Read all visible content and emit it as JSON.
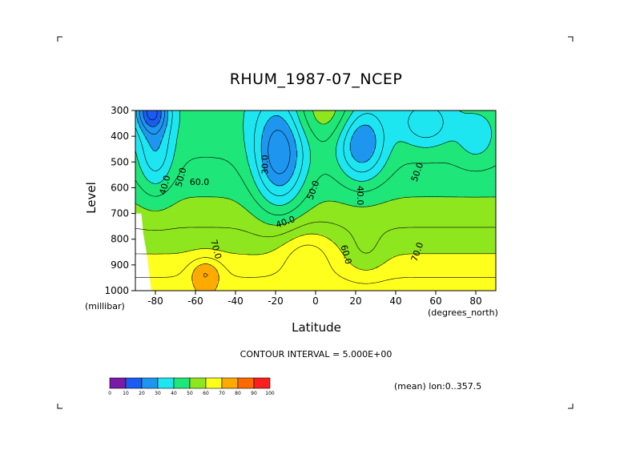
{
  "chart_data": {
    "type": "heatmap",
    "subtype": "filled-contour",
    "title": "RHUM_1987-07_NCEP",
    "xlabel": "Latitude",
    "ylabel": "Level",
    "x_units": "(degrees_north)",
    "y_units": "(millibar)",
    "xlim": [
      -90,
      90
    ],
    "ylim": [
      1000,
      300
    ],
    "x_ticks": [
      -80,
      -60,
      -40,
      -20,
      0,
      20,
      40,
      60,
      80
    ],
    "y_ticks": [
      300,
      400,
      500,
      600,
      700,
      800,
      900,
      1000
    ],
    "contour_interval_text": "CONTOUR INTERVAL = 5.000E+00",
    "footnote": "(mean) lon:0..357.5",
    "contour_labels": [
      {
        "text": "40.0",
        "x": -75,
        "y": 590,
        "rotate": -75
      },
      {
        "text": "50.0",
        "x": -67,
        "y": 560,
        "rotate": -75
      },
      {
        "text": "60.0",
        "x": -58,
        "y": 580,
        "rotate": 0
      },
      {
        "text": "70.0",
        "x": -50,
        "y": 840,
        "rotate": 75
      },
      {
        "text": "30.0",
        "x": -25,
        "y": 510,
        "rotate": -90
      },
      {
        "text": "40.0",
        "x": -15,
        "y": 735,
        "rotate": -20
      },
      {
        "text": "50.0",
        "x": -1,
        "y": 610,
        "rotate": -70
      },
      {
        "text": "60.0",
        "x": 15,
        "y": 860,
        "rotate": 75
      },
      {
        "text": "40.0",
        "x": 22,
        "y": 630,
        "rotate": 90
      },
      {
        "text": "50.0",
        "x": 51,
        "y": 540,
        "rotate": -70
      },
      {
        "text": "70.0",
        "x": 51,
        "y": 850,
        "rotate": -70
      }
    ],
    "colorbar": {
      "labels": [
        "0",
        "10",
        "20",
        "30",
        "40",
        "50",
        "60",
        "70",
        "80",
        "90",
        "100"
      ],
      "colors": [
        "#7a1aa8",
        "#0f1ee6",
        "#1a5cf2",
        "#1e96f0",
        "#1ee6f0",
        "#1ee678",
        "#8ee61e",
        "#ffff1e",
        "#ffaa00",
        "#ff6a00",
        "#ff1e1e"
      ]
    }
  }
}
